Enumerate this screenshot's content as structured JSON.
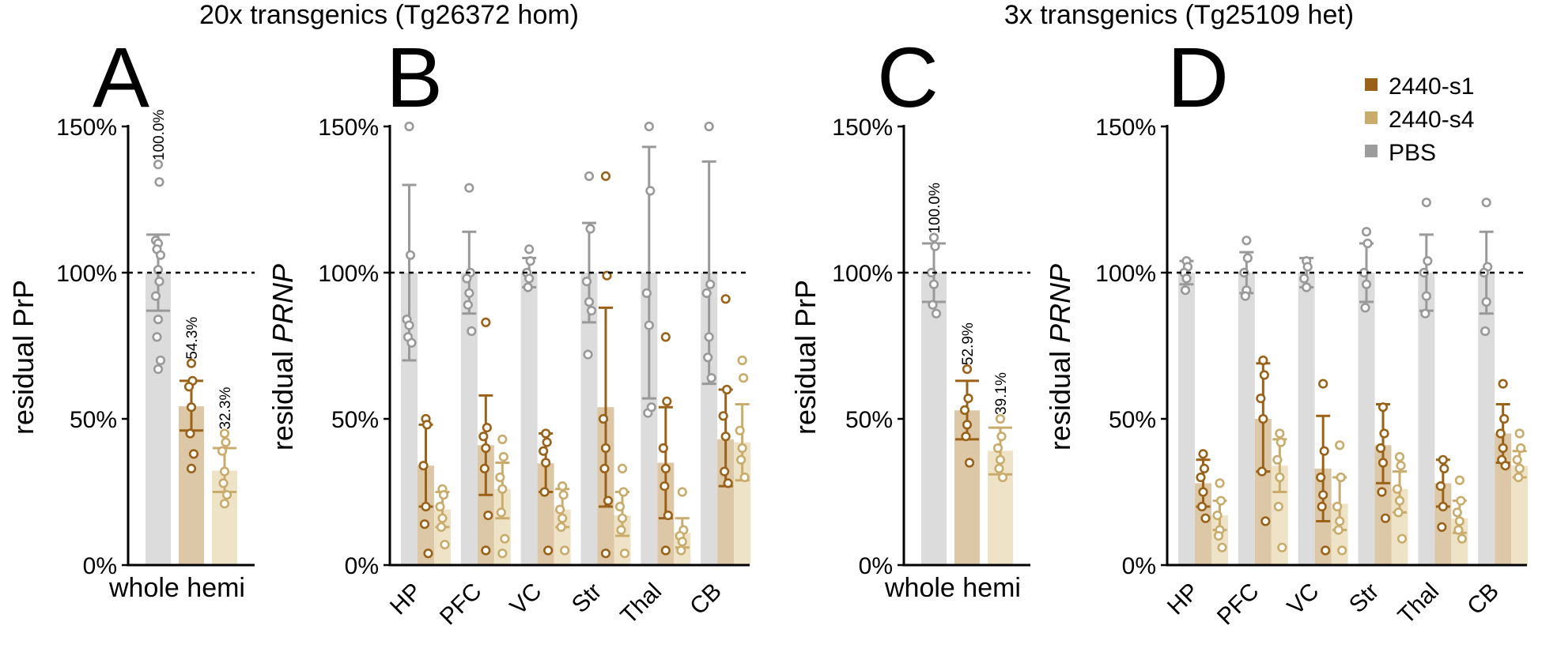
{
  "titles": {
    "left": "20x transgenics (Tg26372 hom)",
    "right": "3x transgenics (Tg25109 het)"
  },
  "legend": {
    "placement": "top-right",
    "items": [
      {
        "label": "2440-s1",
        "color": "#9a6218"
      },
      {
        "label": "2440-s4",
        "color": "#c9ac6b"
      },
      {
        "label": "PBS",
        "color": "#9c9c9c"
      }
    ]
  },
  "colors": {
    "PBS": {
      "bar": "#dcdcdc",
      "mark": "#999999"
    },
    "2440-s1": {
      "bar": "#dcc7a6",
      "mark": "#9a6218"
    },
    "2440-s4": {
      "bar": "#eee3c6",
      "mark": "#c9ac6b"
    }
  },
  "chart_data": [
    {
      "panel": "A",
      "type": "bar",
      "ylabel": "residual PrP",
      "ylabel_italic": "",
      "xlabel": "whole hemi",
      "ylim": [
        0,
        150
      ],
      "yticks": [
        "0%",
        "50%",
        "100%",
        "150%"
      ],
      "reference_line": 100,
      "series": [
        {
          "name": "PBS",
          "mean": 100,
          "err": [
            87,
            113
          ],
          "label": "100.0%",
          "points": [
            137,
            131,
            111,
            110,
            108,
            106,
            101,
            97,
            92,
            84,
            78,
            70,
            67
          ]
        },
        {
          "name": "2440-s1",
          "mean": 54.3,
          "err": [
            46,
            63
          ],
          "label": "54.3%",
          "points": [
            69,
            63,
            61,
            54,
            45,
            38,
            33
          ]
        },
        {
          "name": "2440-s4",
          "mean": 32.3,
          "err": [
            25,
            40
          ],
          "label": "32.3%",
          "points": [
            45,
            42,
            39,
            32,
            28,
            24,
            21
          ]
        }
      ]
    },
    {
      "panel": "B",
      "type": "bar",
      "ylabel": "residual ",
      "ylabel_italic": "PRNP",
      "ylim": [
        0,
        150
      ],
      "yticks": [
        "0%",
        "50%",
        "100%",
        "150%"
      ],
      "reference_line": 100,
      "categories": [
        "HP",
        "PFC",
        "VC",
        "Str",
        "Thal",
        "CB"
      ],
      "series": [
        {
          "name": "PBS",
          "means": [
            100,
            100,
            100,
            100,
            100,
            100
          ],
          "err_low": [
            70,
            86,
            95,
            83,
            57,
            62
          ],
          "err_high": [
            130,
            114,
            105,
            117,
            143,
            138
          ],
          "points": [
            [
              150,
              106,
              84,
              82,
              78,
              76
            ],
            [
              129,
              100,
              98,
              93,
              89,
              80
            ],
            [
              108,
              104,
              100,
              98,
              95
            ],
            [
              133,
              115,
              97,
              90,
              72,
              87
            ],
            [
              150,
              128,
              93,
              82,
              52,
              54
            ],
            [
              150,
              96,
              93,
              78,
              71,
              64
            ]
          ]
        },
        {
          "name": "2440-s1",
          "means": [
            34,
            41,
            34.8,
            54,
            35,
            43
          ],
          "err_low": [
            20,
            24,
            25,
            20,
            16,
            27
          ],
          "err_high": [
            48,
            58,
            45,
            88,
            54,
            60
          ],
          "points": [
            [
              50,
              48,
              34,
              20,
              14,
              4
            ],
            [
              83,
              47,
              44,
              40,
              33,
              17,
              5
            ],
            [
              45,
              42,
              39,
              35,
              25,
              5
            ],
            [
              133,
              99,
              50,
              40,
              33,
              22,
              4
            ],
            [
              78,
              56,
              40,
              33,
              27,
              17,
              5
            ],
            [
              91,
              60,
              51,
              44,
              32,
              28
            ]
          ]
        },
        {
          "name": "2440-s4",
          "means": [
            19,
            26,
            19,
            17,
            11,
            42
          ],
          "err_low": [
            13,
            16,
            13,
            10,
            6,
            29
          ],
          "err_high": [
            25,
            35,
            26,
            25,
            16,
            55
          ],
          "points": [
            [
              26,
              24,
              20,
              16,
              13,
              7
            ],
            [
              43,
              37,
              30,
              26,
              18,
              9,
              4
            ],
            [
              27,
              24,
              19,
              16,
              13,
              5
            ],
            [
              33,
              25,
              20,
              16,
              12,
              4
            ],
            [
              25,
              12,
              10,
              8,
              5
            ],
            [
              70,
              64,
              46,
              40,
              36,
              30
            ]
          ]
        }
      ]
    },
    {
      "panel": "C",
      "type": "bar",
      "ylabel": "residual PrP",
      "ylabel_italic": "",
      "xlabel": "whole hemi",
      "ylim": [
        0,
        150
      ],
      "yticks": [
        "0%",
        "50%",
        "100%",
        "150%"
      ],
      "reference_line": 100,
      "series": [
        {
          "name": "PBS",
          "mean": 100,
          "err": [
            90,
            110
          ],
          "label": "100.0%",
          "points": [
            112,
            109,
            100,
            96,
            89,
            86
          ]
        },
        {
          "name": "2440-s1",
          "mean": 52.9,
          "err": [
            43,
            63
          ],
          "label": "52.9%",
          "points": [
            67,
            57,
            53,
            48,
            44,
            35
          ]
        },
        {
          "name": "2440-s4",
          "mean": 39.1,
          "err": [
            31,
            47
          ],
          "label": "39.1%",
          "points": [
            50,
            44,
            40,
            36,
            33,
            30
          ]
        }
      ]
    },
    {
      "panel": "D",
      "type": "bar",
      "ylabel": "residual ",
      "ylabel_italic": "PRNP",
      "ylim": [
        0,
        150
      ],
      "yticks": [
        "0%",
        "50%",
        "100%",
        "150%"
      ],
      "reference_line": 100,
      "categories": [
        "HP",
        "PFC",
        "VC",
        "Str",
        "Thal",
        "CB"
      ],
      "series": [
        {
          "name": "PBS",
          "means": [
            100,
            100,
            100,
            100,
            100,
            100
          ],
          "err_low": [
            96,
            93,
            95,
            90,
            87,
            86
          ],
          "err_high": [
            104,
            107,
            105,
            110,
            113,
            114
          ],
          "points": [
            [
              104,
              102,
              100,
              98,
              94
            ],
            [
              111,
              105,
              100,
              94,
              92
            ],
            [
              104,
              102,
              98,
              95
            ],
            [
              114,
              110,
              100,
              96,
              88
            ],
            [
              124,
              104,
              100,
              92,
              86
            ],
            [
              124,
              102,
              100,
              90,
              80
            ]
          ]
        },
        {
          "name": "2440-s1",
          "means": [
            28,
            50,
            33,
            41,
            28,
            45
          ],
          "err_low": [
            20,
            32,
            15,
            28,
            20,
            35
          ],
          "err_high": [
            36,
            69,
            51,
            55,
            36,
            55
          ],
          "points": [
            [
              38,
              33,
              30,
              25,
              20,
              16
            ],
            [
              70,
              65,
              57,
              50,
              32,
              15
            ],
            [
              62,
              39,
              30,
              24,
              20,
              5
            ],
            [
              54,
              45,
              40,
              35,
              25,
              16
            ],
            [
              36,
              33,
              27,
              20,
              13
            ],
            [
              62,
              50,
              45,
              40,
              36,
              34
            ]
          ]
        },
        {
          "name": "2440-s4",
          "means": [
            17,
            34,
            21,
            26,
            16,
            34
          ],
          "err_low": [
            12,
            25,
            12,
            18,
            11,
            30
          ],
          "err_high": [
            22,
            43,
            30,
            32,
            22,
            39
          ],
          "points": [
            [
              28,
              22,
              17,
              12,
              10,
              6
            ],
            [
              45,
              42,
              36,
              30,
              20,
              6
            ],
            [
              41,
              30,
              20,
              15,
              12,
              5
            ],
            [
              37,
              34,
              26,
              22,
              18,
              9
            ],
            [
              29,
              22,
              18,
              15,
              12,
              9
            ],
            [
              45,
              40,
              36,
              33,
              30
            ]
          ]
        }
      ]
    }
  ]
}
